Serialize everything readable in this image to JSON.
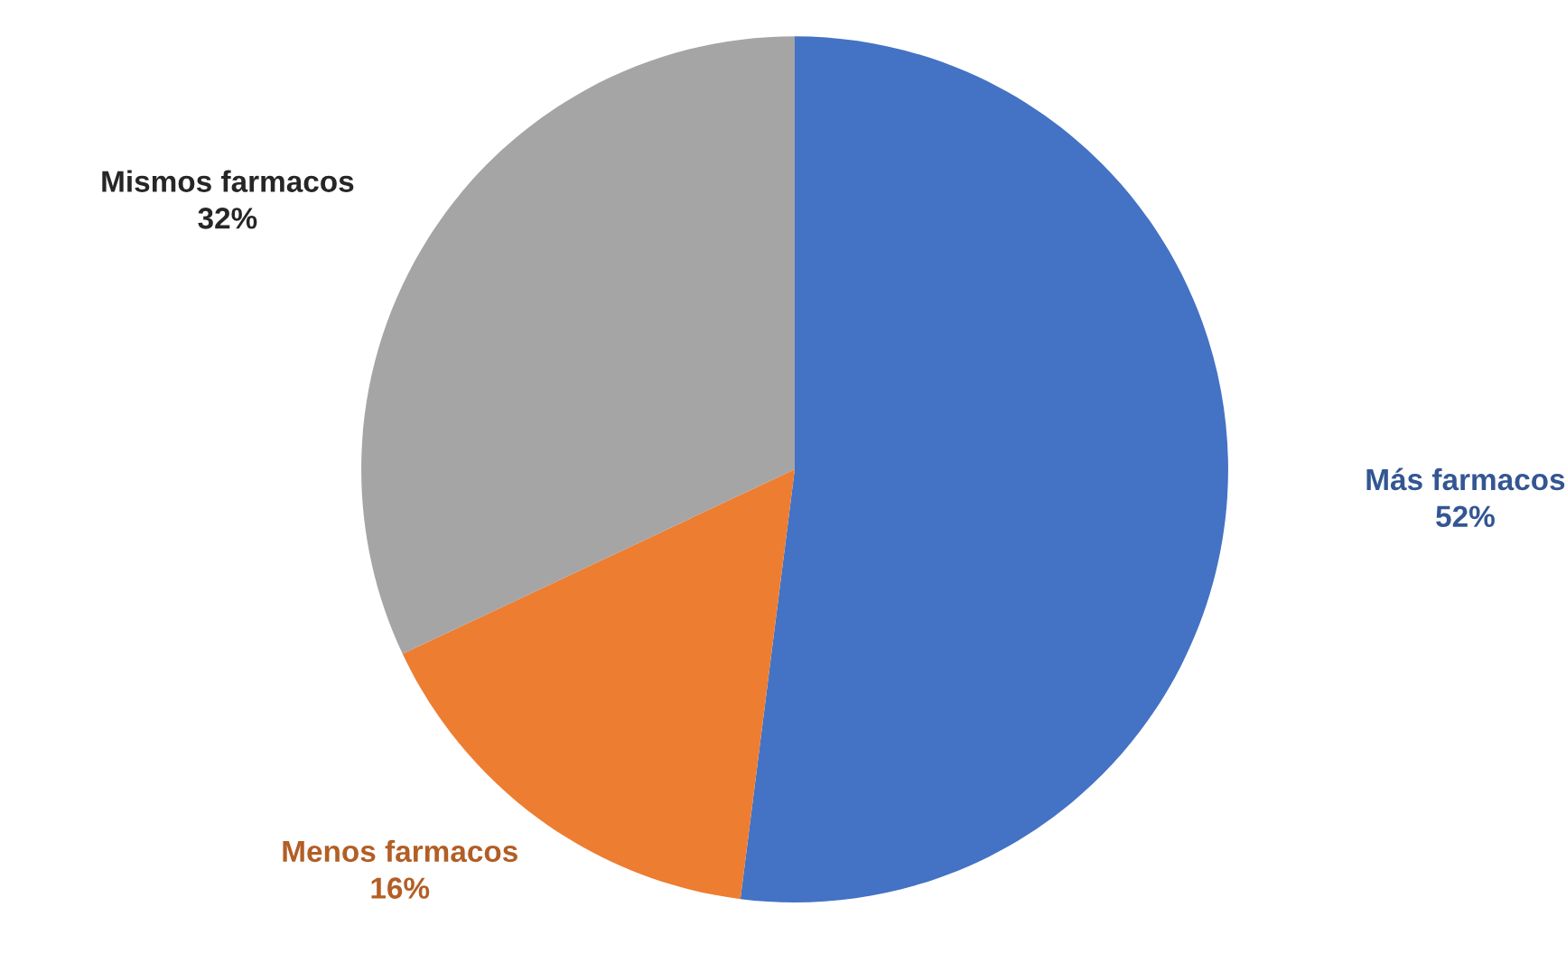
{
  "chart_data": {
    "type": "pie",
    "categories": [
      "Más farmacos",
      "Menos farmacos",
      "Mismos farmacos"
    ],
    "values": [
      52,
      16,
      32
    ],
    "value_labels": [
      "52%",
      "16%",
      "32%"
    ],
    "colors": [
      "#4472c4",
      "#ed7d31",
      "#a5a5a5"
    ],
    "legend": false
  }
}
